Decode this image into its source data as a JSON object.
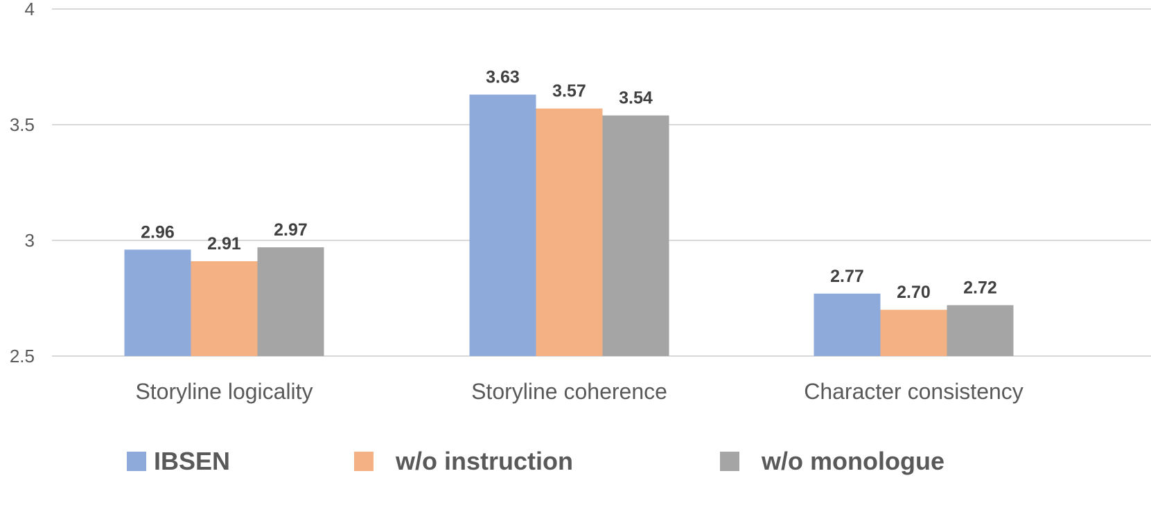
{
  "chart_data": {
    "type": "bar",
    "categories": [
      "Storyline logicality",
      "Storyline coherence",
      "Character consistency"
    ],
    "series": [
      {
        "name": "IBSEN",
        "values": [
          2.96,
          3.63,
          2.77
        ],
        "labels": [
          "2.96",
          "3.63",
          "2.77"
        ],
        "color": "#8eaadb"
      },
      {
        "name": "w/o instruction",
        "values": [
          2.91,
          3.57,
          2.7
        ],
        "labels": [
          "2.91",
          "3.57",
          "2.70"
        ],
        "color": "#f4b183"
      },
      {
        "name": "w/o monologue",
        "values": [
          2.97,
          3.54,
          2.72
        ],
        "labels": [
          "2.97",
          "3.54",
          "2.72"
        ],
        "color": "#a5a5a5"
      }
    ],
    "ylim": [
      2.5,
      4
    ],
    "yticks": [
      2.5,
      3,
      3.5,
      4
    ],
    "ytick_labels": [
      "2.5",
      "3",
      "3.5",
      "4"
    ],
    "grid": true,
    "legend_position": "bottom",
    "title": "",
    "xlabel": "",
    "ylabel": ""
  }
}
